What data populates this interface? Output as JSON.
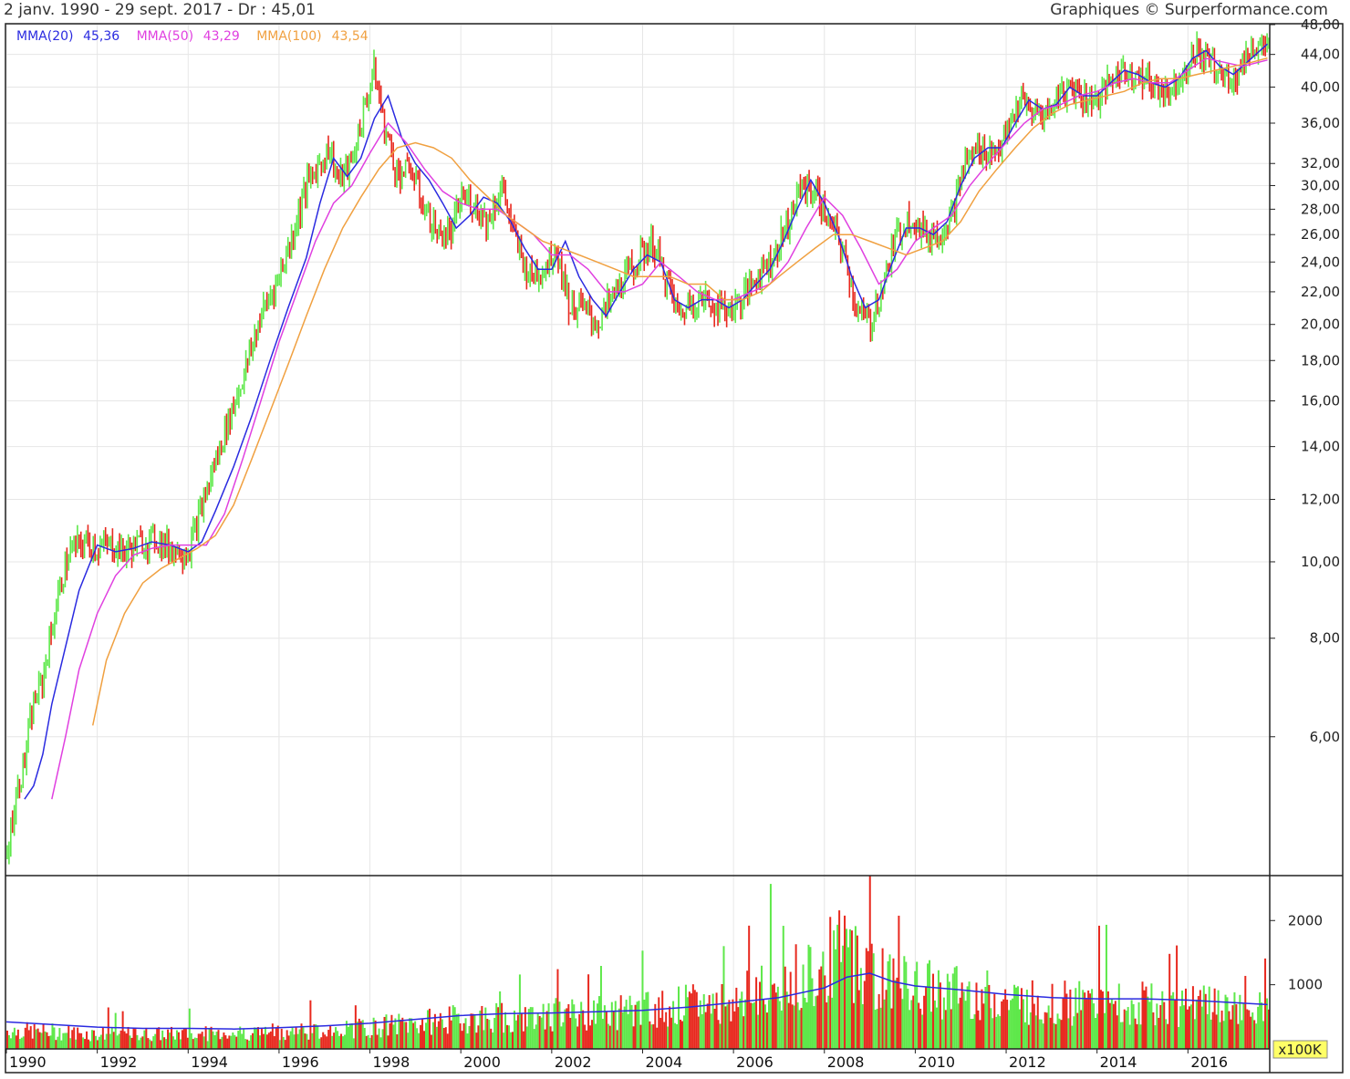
{
  "header": {
    "period": "2 janv. 1990 - 29 sept. 2017 - Dr : 45,01",
    "source": "Graphiques © Surperformance.com"
  },
  "colors": {
    "up": "#5ee84a",
    "down": "#e8281e",
    "mma20": "#2a2ae0",
    "mma50": "#e040e0",
    "mma100": "#f0a040",
    "volume_avg": "#2a2ae0",
    "grid": "#e6e6e6",
    "frame": "#222222",
    "unit_badge": "#ffff66"
  },
  "chart_data": [
    {
      "type": "line",
      "title": "2 janv. 1990 - 29 sept. 2017 - Dr : 45,01",
      "scale": "log",
      "ylim": [
        4.0,
        48.0
      ],
      "xlim": [
        1990.0,
        2017.8
      ],
      "y_ticks": [
        6,
        8,
        10,
        12,
        14,
        16,
        18,
        20,
        22,
        24,
        26,
        28,
        30,
        32,
        36,
        40,
        44,
        48
      ],
      "y_tick_labels": [
        "6,00",
        "8,00",
        "10,00",
        "12,00",
        "14,00",
        "16,00",
        "18,00",
        "20,00",
        "22,00",
        "24,00",
        "26,00",
        "28,00",
        "30,00",
        "32,00",
        "36,00",
        "40,00",
        "44,00",
        "48,00"
      ],
      "x_ticks": [
        1990,
        1992,
        1994,
        1996,
        1998,
        2000,
        2002,
        2004,
        2006,
        2008,
        2010,
        2012,
        2014,
        2016
      ],
      "x_tick_labels": [
        "1990",
        "1992",
        "1994",
        "1996",
        "1998",
        "2000",
        "2002",
        "2004",
        "2006",
        "2008",
        "2010",
        "2012",
        "2014",
        "2016"
      ],
      "grid": true,
      "legend_position": "top-left",
      "legend": [
        {
          "label": "MMA(20)",
          "value": "45,36"
        },
        {
          "label": "MMA(50)",
          "value": "43,29"
        },
        {
          "label": "MMA(100)",
          "value": "43,54"
        }
      ],
      "price": {
        "x": [
          1990.0,
          1990.2,
          1990.4,
          1990.6,
          1990.8,
          1991.0,
          1991.2,
          1991.4,
          1991.6,
          1991.8,
          1992.0,
          1992.3,
          1992.6,
          1993.0,
          1993.3,
          1993.6,
          1994.0,
          1994.2,
          1994.5,
          1994.8,
          1995.0,
          1995.3,
          1995.6,
          1996.0,
          1996.3,
          1996.6,
          1996.9,
          1997.1,
          1997.3,
          1997.6,
          1997.9,
          1998.1,
          1998.3,
          1998.6,
          1998.9,
          1999.2,
          1999.5,
          1999.8,
          2000.0,
          2000.3,
          2000.6,
          2000.9,
          2001.2,
          2001.5,
          2001.8,
          2002.1,
          2002.4,
          2002.7,
          2003.0,
          2003.3,
          2003.6,
          2003.9,
          2004.2,
          2004.5,
          2004.8,
          2005.1,
          2005.4,
          2005.7,
          2006.0,
          2006.3,
          2006.6,
          2006.9,
          2007.2,
          2007.5,
          2007.8,
          2008.1,
          2008.4,
          2008.7,
          2009.0,
          2009.3,
          2009.6,
          2009.9,
          2010.2,
          2010.5,
          2010.8,
          2011.1,
          2011.4,
          2011.7,
          2012.0,
          2012.3,
          2012.6,
          2012.9,
          2013.2,
          2013.5,
          2013.8,
          2014.1,
          2014.4,
          2014.7,
          2015.0,
          2015.3,
          2015.6,
          2015.9,
          2016.2,
          2016.5,
          2016.8,
          2017.1,
          2017.4,
          2017.75
        ],
        "y": [
          4.2,
          5.0,
          5.6,
          6.6,
          7.1,
          8.2,
          9.4,
          10.3,
          10.5,
          10.6,
          10.4,
          10.5,
          10.3,
          10.6,
          10.7,
          10.4,
          10.3,
          11.2,
          12.8,
          14.6,
          15.8,
          17.8,
          20.5,
          23.0,
          26.0,
          30.0,
          32.0,
          33.5,
          30.5,
          32.0,
          38.0,
          42.0,
          36.0,
          31.0,
          31.5,
          28.0,
          26.0,
          26.0,
          29.0,
          28.5,
          27.0,
          30.0,
          25.5,
          23.0,
          23.5,
          25.0,
          21.0,
          21.0,
          20.0,
          21.5,
          23.0,
          24.0,
          25.5,
          23.0,
          20.5,
          21.5,
          21.5,
          21.0,
          21.0,
          22.0,
          23.5,
          24.5,
          27.0,
          30.0,
          29.5,
          27.0,
          25.0,
          21.0,
          20.0,
          22.5,
          26.0,
          27.5,
          26.0,
          26.0,
          27.5,
          32.0,
          33.5,
          33.0,
          34.5,
          38.5,
          37.0,
          37.0,
          39.5,
          40.0,
          38.5,
          39.0,
          41.5,
          42.0,
          41.0,
          40.0,
          39.5,
          42.0,
          44.5,
          43.0,
          41.0,
          41.5,
          45.0,
          45.01
        ]
      },
      "series": [
        {
          "name": "MMA(20)",
          "x": [
            1990.4,
            1990.6,
            1990.8,
            1991.0,
            1991.3,
            1991.6,
            1992.0,
            1992.4,
            1992.8,
            1993.2,
            1993.6,
            1994.0,
            1994.3,
            1994.6,
            1995.0,
            1995.4,
            1995.8,
            1996.2,
            1996.6,
            1996.9,
            1997.2,
            1997.5,
            1997.8,
            1998.1,
            1998.4,
            1998.7,
            1999.0,
            1999.3,
            1999.6,
            1999.9,
            2000.2,
            2000.5,
            2000.8,
            2001.1,
            2001.4,
            2001.7,
            2002.0,
            2002.3,
            2002.6,
            2002.9,
            2003.2,
            2003.5,
            2003.8,
            2004.1,
            2004.4,
            2004.7,
            2005.0,
            2005.3,
            2005.6,
            2005.9,
            2006.2,
            2006.5,
            2006.8,
            2007.1,
            2007.4,
            2007.7,
            2008.0,
            2008.3,
            2008.6,
            2008.9,
            2009.2,
            2009.5,
            2009.8,
            2010.1,
            2010.4,
            2010.7,
            2011.0,
            2011.3,
            2011.6,
            2011.9,
            2012.2,
            2012.5,
            2012.8,
            2013.1,
            2013.4,
            2013.7,
            2014.0,
            2014.3,
            2014.6,
            2014.9,
            2015.2,
            2015.5,
            2015.8,
            2016.1,
            2016.4,
            2016.7,
            2017.0,
            2017.3,
            2017.75
          ],
          "values": [
            5.0,
            5.2,
            5.7,
            6.6,
            7.8,
            9.2,
            10.5,
            10.3,
            10.4,
            10.6,
            10.5,
            10.3,
            10.6,
            11.6,
            13.2,
            15.3,
            18.0,
            21.0,
            24.3,
            28.5,
            32.5,
            30.8,
            32.5,
            36.5,
            39.0,
            34.5,
            32.0,
            30.5,
            28.5,
            26.5,
            27.5,
            29.0,
            28.5,
            27.0,
            25.0,
            23.5,
            23.5,
            25.5,
            23.0,
            21.5,
            20.5,
            22.0,
            23.5,
            24.5,
            24.0,
            21.5,
            21.0,
            21.5,
            21.5,
            21.0,
            21.5,
            22.5,
            23.5,
            25.5,
            28.0,
            30.5,
            28.5,
            26.0,
            23.0,
            21.0,
            21.5,
            24.0,
            26.5,
            26.5,
            26.0,
            27.0,
            30.0,
            32.5,
            33.5,
            33.5,
            36.0,
            38.5,
            37.5,
            38.0,
            40.0,
            39.0,
            39.0,
            40.5,
            42.0,
            41.5,
            40.5,
            40.0,
            41.0,
            43.5,
            44.5,
            42.5,
            41.5,
            43.0,
            45.36
          ]
        },
        {
          "name": "MMA(50)",
          "x": [
            1991.0,
            1991.3,
            1991.6,
            1992.0,
            1992.4,
            1992.8,
            1993.2,
            1993.6,
            1994.0,
            1994.4,
            1994.8,
            1995.2,
            1995.6,
            1996.0,
            1996.4,
            1996.8,
            1997.2,
            1997.6,
            1998.0,
            1998.4,
            1998.8,
            1999.2,
            1999.6,
            2000.0,
            2000.4,
            2000.8,
            2001.2,
            2001.6,
            2002.0,
            2002.4,
            2002.8,
            2003.2,
            2003.6,
            2004.0,
            2004.4,
            2004.8,
            2005.2,
            2005.6,
            2006.0,
            2006.4,
            2006.8,
            2007.2,
            2007.6,
            2008.0,
            2008.4,
            2008.8,
            2009.2,
            2009.6,
            2010.0,
            2010.4,
            2010.8,
            2011.2,
            2011.6,
            2012.0,
            2012.4,
            2012.8,
            2013.2,
            2013.6,
            2014.0,
            2014.4,
            2014.8,
            2015.2,
            2015.6,
            2016.0,
            2016.4,
            2016.8,
            2017.2,
            2017.75
          ],
          "values": [
            5.0,
            6.0,
            7.3,
            8.6,
            9.6,
            10.2,
            10.4,
            10.5,
            10.5,
            10.5,
            11.5,
            13.5,
            16.0,
            19.0,
            22.0,
            25.5,
            28.5,
            30.0,
            33.0,
            36.0,
            34.0,
            31.5,
            29.5,
            28.5,
            28.0,
            28.0,
            27.0,
            26.0,
            24.5,
            24.5,
            23.5,
            22.0,
            22.0,
            22.5,
            24.0,
            23.0,
            22.0,
            21.5,
            21.5,
            22.0,
            22.5,
            24.0,
            26.5,
            29.0,
            27.5,
            25.0,
            22.5,
            23.5,
            25.5,
            26.5,
            27.5,
            30.0,
            32.0,
            34.0,
            36.0,
            37.5,
            38.0,
            39.0,
            39.5,
            40.5,
            41.0,
            40.5,
            40.5,
            42.0,
            43.5,
            43.0,
            42.5,
            43.29
          ]
        },
        {
          "name": "MMA(100)",
          "x": [
            1991.9,
            1992.2,
            1992.6,
            1993.0,
            1993.4,
            1993.8,
            1994.2,
            1994.6,
            1995.0,
            1995.4,
            1995.8,
            1996.2,
            1996.6,
            1997.0,
            1997.4,
            1997.8,
            1998.2,
            1998.6,
            1999.0,
            1999.4,
            1999.8,
            2000.2,
            2000.6,
            2001.0,
            2001.4,
            2001.8,
            2002.2,
            2002.6,
            2003.0,
            2003.4,
            2003.8,
            2004.2,
            2004.6,
            2005.0,
            2005.4,
            2005.8,
            2006.2,
            2006.6,
            2007.0,
            2007.4,
            2007.8,
            2008.2,
            2008.6,
            2009.0,
            2009.4,
            2009.8,
            2010.2,
            2010.6,
            2011.0,
            2011.4,
            2011.8,
            2012.2,
            2012.6,
            2013.0,
            2013.4,
            2013.8,
            2014.2,
            2014.6,
            2015.0,
            2015.4,
            2015.8,
            2016.2,
            2016.6,
            2017.0,
            2017.4,
            2017.75
          ],
          "values": [
            6.2,
            7.5,
            8.6,
            9.4,
            9.8,
            10.1,
            10.4,
            10.8,
            11.8,
            13.5,
            15.5,
            17.8,
            20.5,
            23.5,
            26.5,
            29.0,
            31.5,
            33.5,
            34.0,
            33.5,
            32.5,
            30.5,
            29.0,
            27.5,
            26.5,
            25.5,
            25.0,
            24.5,
            24.0,
            23.5,
            23.0,
            23.0,
            23.0,
            22.5,
            22.5,
            21.5,
            21.5,
            22.0,
            23.0,
            24.0,
            25.0,
            26.0,
            26.0,
            25.5,
            25.0,
            24.5,
            25.0,
            25.5,
            27.0,
            29.5,
            31.5,
            33.5,
            35.5,
            37.0,
            38.0,
            38.5,
            39.0,
            39.5,
            40.5,
            41.0,
            41.0,
            41.5,
            42.0,
            42.5,
            43.0,
            43.54
          ]
        }
      ]
    },
    {
      "type": "bar",
      "unit": "x100K",
      "ylim": [
        0,
        2700
      ],
      "y_ticks": [
        1000,
        2000
      ],
      "y_tick_labels": [
        "1000",
        "2000"
      ],
      "volume": {
        "x": [
          1990.0,
          1991.0,
          1992.0,
          1993.0,
          1994.0,
          1995.0,
          1996.0,
          1997.0,
          1998.0,
          1999.0,
          2000.0,
          2001.0,
          2002.0,
          2003.0,
          2004.0,
          2005.0,
          2006.0,
          2007.0,
          2008.0,
          2008.5,
          2009.0,
          2010.0,
          2011.0,
          2012.0,
          2013.0,
          2014.0,
          2015.0,
          2016.0,
          2017.0,
          2017.75
        ],
        "values": [
          320,
          300,
          260,
          260,
          260,
          280,
          300,
          330,
          380,
          450,
          520,
          560,
          600,
          620,
          680,
          750,
          850,
          1050,
          1500,
          1700,
          1300,
          1050,
          1000,
          850,
          800,
          780,
          780,
          750,
          700,
          650
        ]
      },
      "series": [
        {
          "name": "volume-average",
          "x": [
            1990.0,
            1991.0,
            1992.0,
            1993.0,
            1994.0,
            1995.0,
            1996.0,
            1997.0,
            1998.0,
            1999.0,
            2000.0,
            2001.0,
            2002.0,
            2003.0,
            2004.0,
            2005.0,
            2006.0,
            2007.0,
            2008.0,
            2008.5,
            2009.0,
            2009.5,
            2010.0,
            2011.0,
            2012.0,
            2013.0,
            2014.0,
            2015.0,
            2016.0,
            2017.0,
            2017.75
          ],
          "values": [
            420,
            380,
            340,
            320,
            320,
            310,
            330,
            360,
            400,
            460,
            520,
            550,
            560,
            580,
            600,
            650,
            720,
            800,
            950,
            1120,
            1180,
            1050,
            980,
            920,
            850,
            800,
            780,
            780,
            760,
            720,
            690
          ]
        }
      ]
    }
  ]
}
